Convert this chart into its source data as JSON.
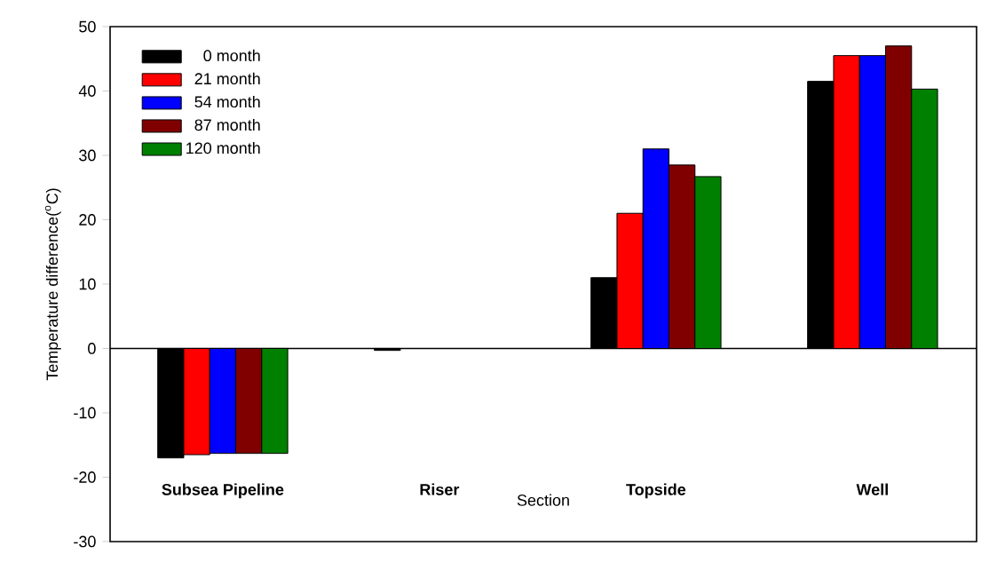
{
  "chart_data": {
    "type": "bar",
    "xlabel": "Section",
    "ylabel": "Temperature difference($^{o}$C)",
    "categories": [
      "Subsea Pipeline",
      "Riser",
      "Topside",
      "Well"
    ],
    "series": [
      {
        "name": "0 month",
        "color": "#000000",
        "values": [
          -17,
          -0.3,
          11,
          41.5
        ]
      },
      {
        "name": "21 month",
        "color": "#ff0000",
        "values": [
          -16.5,
          null,
          21,
          45.5
        ]
      },
      {
        "name": "54 month",
        "color": "#0000ff",
        "values": [
          -16.3,
          null,
          31,
          45.5
        ]
      },
      {
        "name": "87 month",
        "color": "#800000",
        "values": [
          -16.3,
          null,
          28.5,
          47
        ]
      },
      {
        "name": "120 month",
        "color": "#008000",
        "values": [
          -16.3,
          null,
          26.7,
          40.3
        ]
      }
    ],
    "ylim": [
      -30,
      50
    ],
    "yticks": [
      -30,
      -20,
      -10,
      0,
      10,
      20,
      30,
      40,
      50
    ],
    "ref_lines": [
      {
        "axis": "y",
        "value": 0,
        "color": "#000000"
      }
    ],
    "legend": "top left",
    "grid": false
  }
}
